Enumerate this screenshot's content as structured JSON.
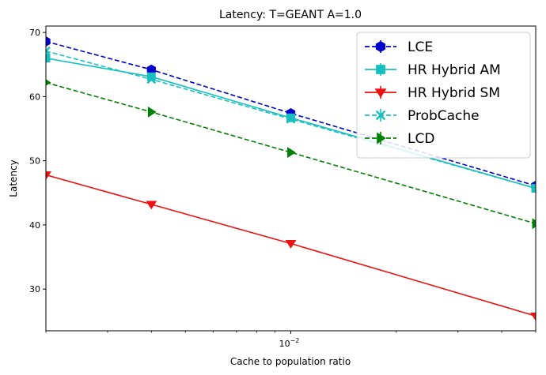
{
  "chart_data": {
    "type": "line",
    "title": "Latency: T=GEANT A=1.0",
    "xlabel": "Cache to population ratio",
    "ylabel": "Latency",
    "xscale": "log",
    "xlim": [
      0.002,
      0.05
    ],
    "ylim": [
      23.5,
      71
    ],
    "x": [
      0.002,
      0.004,
      0.01,
      0.05
    ],
    "xticks": [
      {
        "value": 0.01,
        "label": "10^-2"
      }
    ],
    "yticks": [
      30,
      40,
      50,
      60,
      70
    ],
    "grid": false,
    "legend_position": "top-right",
    "series": [
      {
        "name": "LCE",
        "color": "#0000cc",
        "linestyle": "dashed",
        "marker": "hexagon",
        "values": [
          68.6,
          64.2,
          57.4,
          46.1
        ]
      },
      {
        "name": "HR Hybrid AM",
        "color": "#17bfbf",
        "linestyle": "solid",
        "marker": "square",
        "values": [
          66.0,
          63.1,
          56.7,
          45.7
        ]
      },
      {
        "name": "HR Hybrid SM",
        "color": "#ee1111",
        "linestyle": "solid",
        "marker": "triangle-down",
        "values": [
          47.8,
          43.2,
          37.1,
          25.8
        ]
      },
      {
        "name": "ProbCache",
        "color": "#17bfbf",
        "linestyle": "dashed",
        "marker": "x",
        "values": [
          67.1,
          62.7,
          56.5,
          45.7
        ]
      },
      {
        "name": "LCD",
        "color": "#008000",
        "linestyle": "dashed",
        "marker": "triangle-right",
        "values": [
          62.2,
          57.6,
          51.3,
          40.2
        ]
      }
    ]
  }
}
